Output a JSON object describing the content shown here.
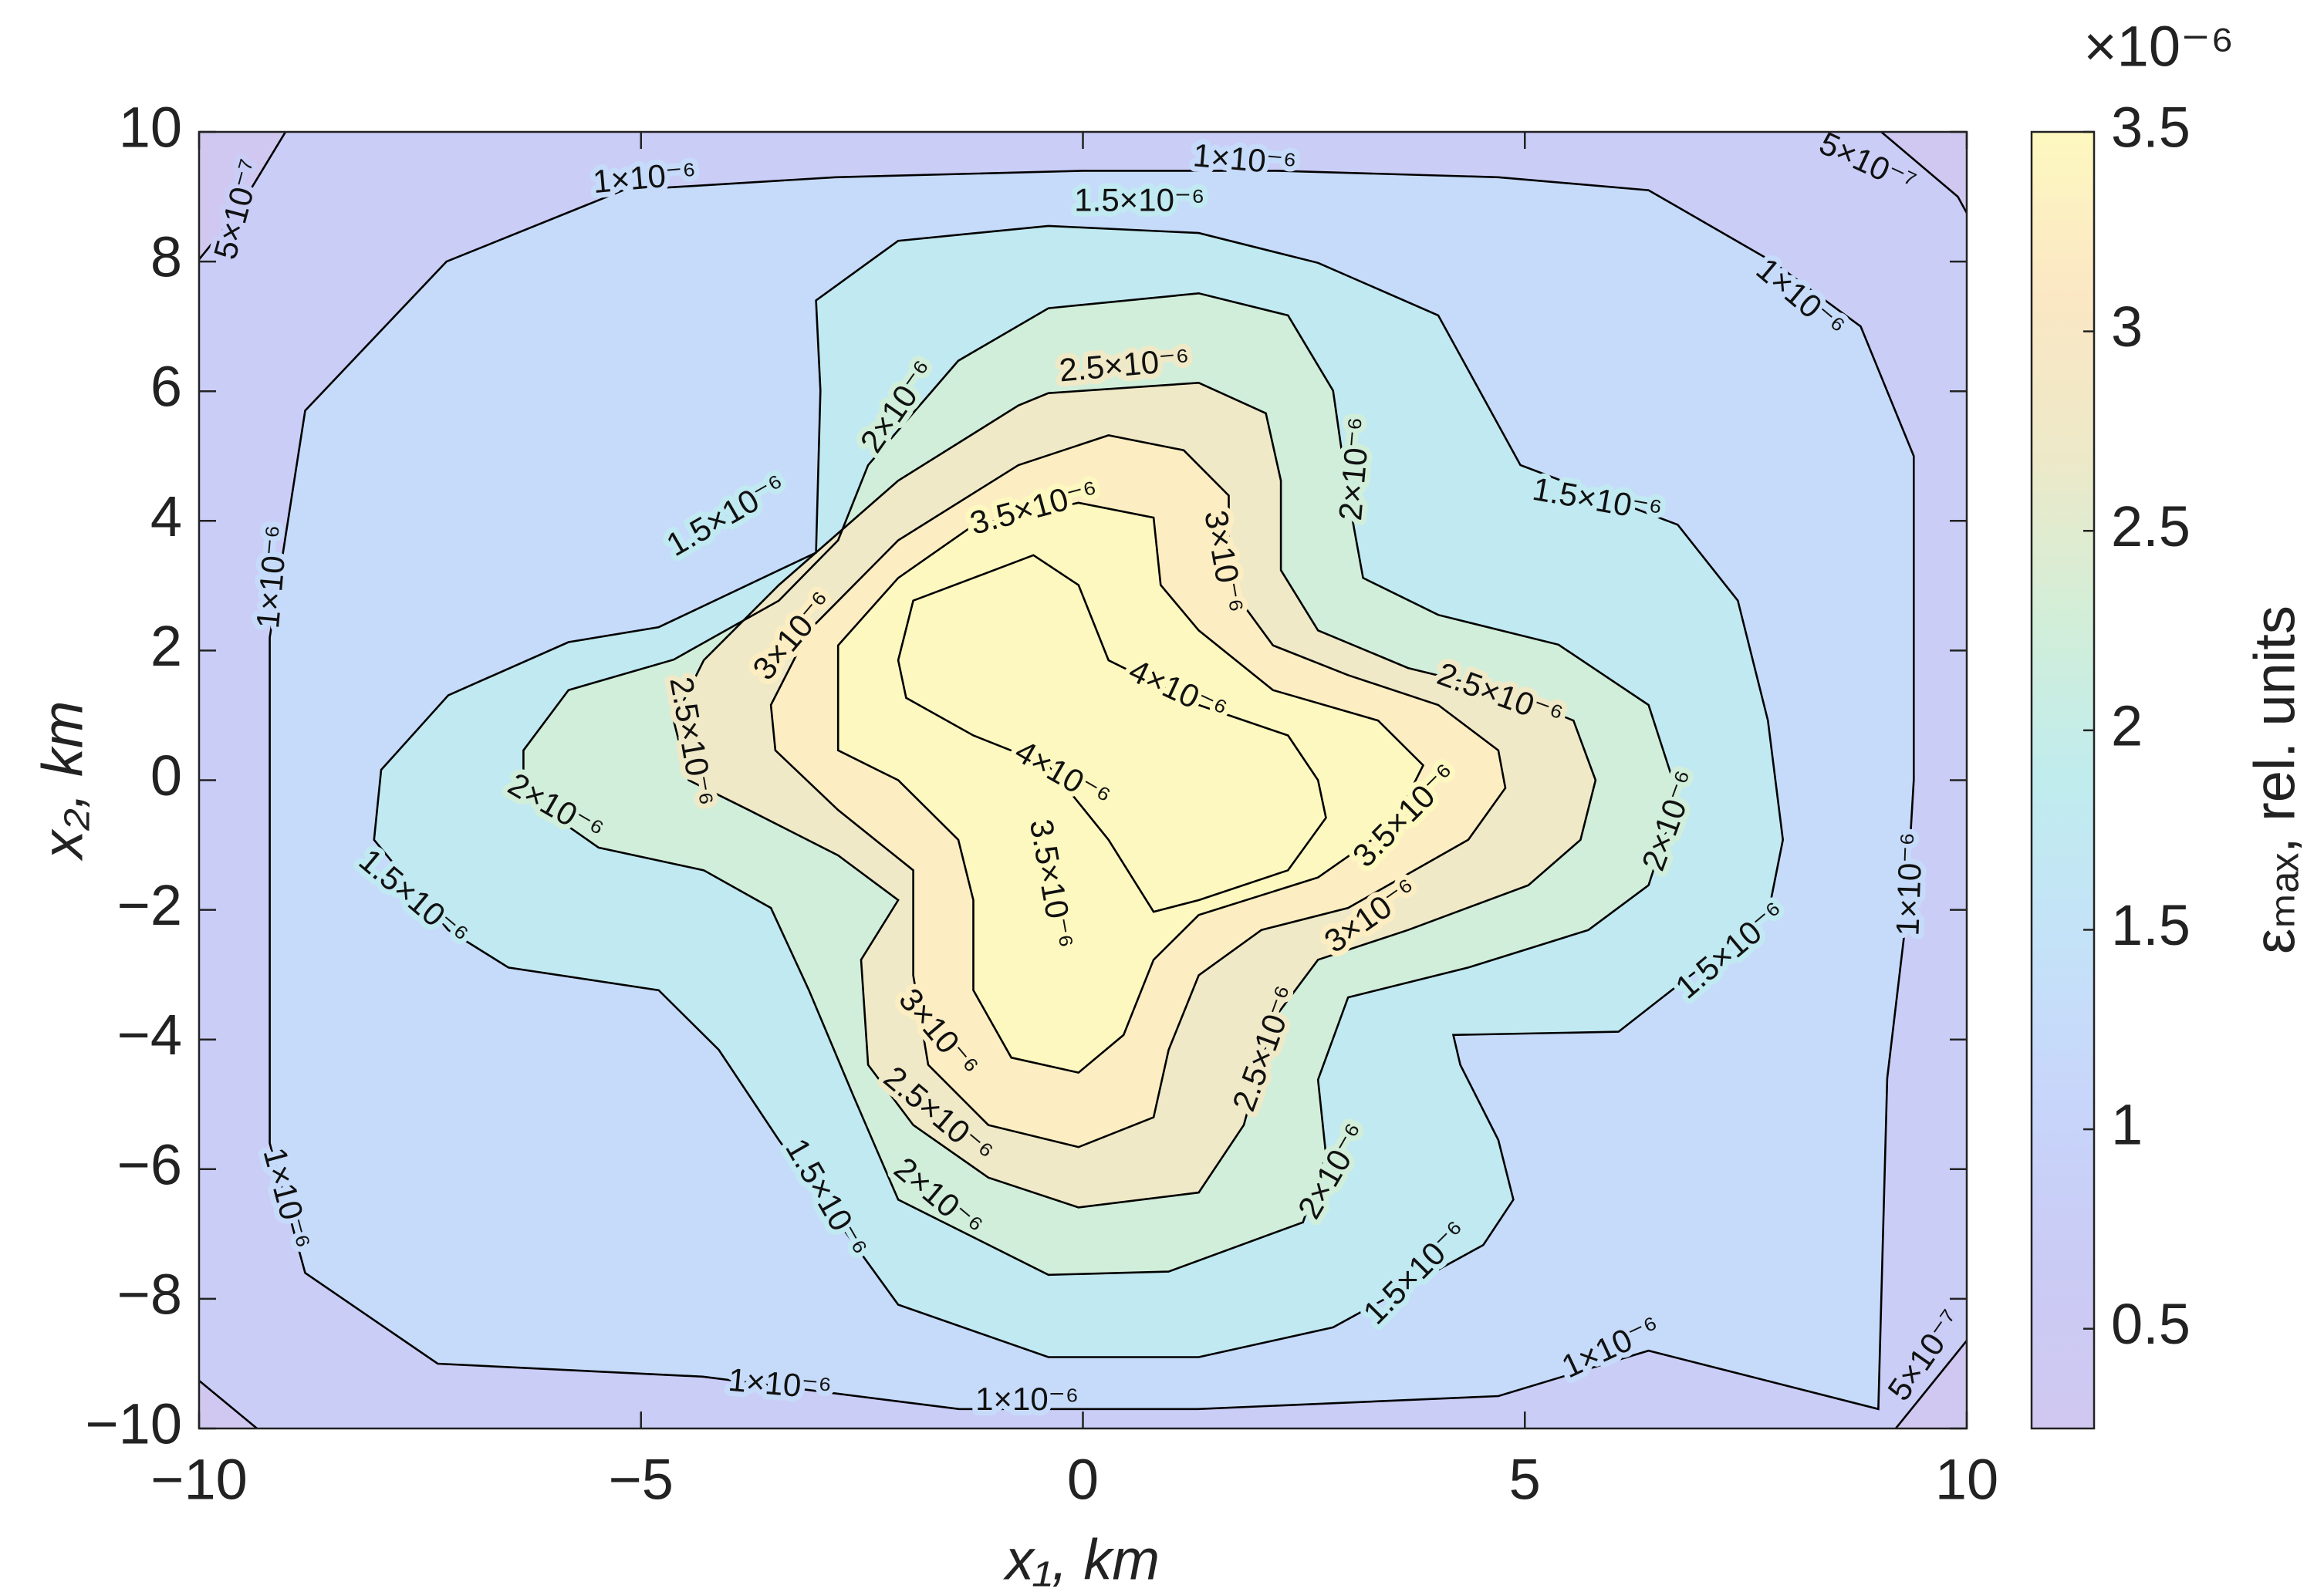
{
  "chart_data": {
    "type": "contour",
    "xlabel": "x₁, km",
    "ylabel": "x₂, km",
    "xlim": [
      -10,
      10
    ],
    "ylim": [
      -10,
      10
    ],
    "xticks": [
      {
        "value": -10,
        "label": "−10"
      },
      {
        "value": -5,
        "label": "−5"
      },
      0,
      5,
      10
    ],
    "yticks": [
      {
        "value": -10,
        "label": "−10"
      },
      {
        "value": -8,
        "label": "−8"
      },
      {
        "value": -6,
        "label": "−6"
      },
      {
        "value": -4,
        "label": "−4"
      },
      {
        "value": -2,
        "label": "−2"
      },
      0,
      2,
      4,
      6,
      8,
      10
    ],
    "colorbar": {
      "label": "εₘₐₓ, rel. units",
      "multiplier": "×10⁻⁶",
      "clim": [
        0.25,
        3.5
      ],
      "ticks": [
        0.5,
        1,
        1.5,
        2,
        2.5,
        3,
        3.5
      ],
      "colors": [
        "#d0c8f0",
        "#cacbf5",
        "#c8d5fb",
        "#c4e2f8",
        "#c0ecee",
        "#d2eed8",
        "#ede9c8",
        "#fbe7c4",
        "#fdf8c0"
      ]
    },
    "line_color": "#000000",
    "contours": [
      {
        "value": 0.5,
        "label": "5×10⁻⁷",
        "x": [
          -8.8,
          8.6,
          9.9,
          10.5,
          10.5,
          8.9,
          -8.9,
          -10.5,
          -10.5,
          -9.6
        ],
        "y": [
          10.5,
          10.5,
          9.0,
          7.5,
          -7.8,
          -10.5,
          -10.5,
          -8.7,
          7.2,
          8.7
        ]
      },
      {
        "value": 1,
        "label": "1×10⁻⁶",
        "x": [
          -9.2,
          -8.8,
          -7.2,
          -5.2,
          -2.8,
          0,
          2.2,
          4.7,
          6.4,
          7.8,
          8.8,
          9.4,
          9.4,
          9.3,
          9.1,
          9.0,
          6.4,
          4.7,
          1.3,
          -1.4,
          -4.3,
          -7.3,
          -8.8,
          -9.2,
          -9.2
        ],
        "y": [
          2.2,
          5.7,
          8.0,
          9.1,
          9.3,
          9.4,
          9.4,
          9.3,
          9.1,
          8.0,
          7.0,
          5.0,
          0,
          -2.3,
          -4.6,
          -9.7,
          -8.8,
          -9.5,
          -9.7,
          -9.7,
          -9.2,
          -9.0,
          -7.6,
          -5.6,
          -1.9
        ]
      },
      {
        "value": 1.5,
        "label": "1.5×10⁻⁶",
        "x": [
          -8.02,
          -7.94,
          -7.18,
          -5.82,
          -4.8,
          -3.02,
          -2.97,
          -3.02,
          -2.09,
          -0.39,
          1.31,
          2.66,
          4.02,
          4.95,
          6.73,
          7.41,
          7.75,
          7.92,
          7.75,
          6.06,
          4.19,
          4.27,
          4.7,
          4.87,
          4.53,
          2.83,
          1.31,
          -0.39,
          -2.09,
          -3.44,
          -4.12,
          -4.8,
          -6.5,
          -7.18
        ],
        "y": [
          -0.92,
          0.16,
          1.31,
          2.13,
          2.36,
          3.51,
          6.01,
          7.4,
          8.32,
          8.55,
          8.44,
          7.98,
          7.17,
          4.86,
          3.94,
          2.77,
          0.92,
          -0.92,
          -2.08,
          -3.88,
          -3.93,
          -4.39,
          -5.55,
          -6.47,
          -7.17,
          -8.44,
          -8.9,
          -8.9,
          -8.09,
          -5.55,
          -4.16,
          -3.24,
          -2.89,
          -2.31
        ]
      },
      {
        "value": 2,
        "label": "2×10⁻⁶",
        "x": [
          -6.33,
          -5.82,
          -4.63,
          -3.44,
          -2.77,
          -2.43,
          -1.41,
          -0.39,
          1.31,
          2.32,
          2.83,
          3.0,
          3.17,
          4.02,
          5.38,
          6.4,
          6.73,
          6.4,
          5.72,
          4.36,
          3.0,
          2.66,
          2.75,
          2.49,
          0.97,
          -0.39,
          -2.09,
          -2.6,
          -3.1,
          -3.53,
          -4.29,
          -5.48,
          -6.33
        ],
        "y": [
          0.46,
          1.39,
          1.86,
          2.77,
          3.7,
          4.86,
          6.47,
          7.28,
          7.51,
          7.17,
          6.01,
          4.39,
          3.12,
          2.55,
          2.09,
          1.16,
          -0.23,
          -1.62,
          -2.31,
          -2.89,
          -3.35,
          -4.62,
          -5.78,
          -6.82,
          -7.58,
          -7.63,
          -6.47,
          -4.86,
          -3.24,
          -1.97,
          -1.39,
          -1.04,
          -0.23
        ]
      },
      {
        "value": 2.5,
        "label": "2.5×10⁻⁶",
        "x": [
          -4.63,
          -4.29,
          -3.44,
          -2.09,
          -0.73,
          -0.39,
          1.31,
          2.07,
          2.24,
          2.24,
          2.66,
          3.68,
          4.7,
          5.55,
          5.8,
          5.63,
          5.04,
          3.68,
          2.66,
          2.15,
          1.82,
          1.31,
          -0.05,
          -1.07,
          -1.92,
          -2.43,
          -2.51,
          -2.09,
          -2.77,
          -3.78,
          -4.46
        ],
        "y": [
          0.92,
          1.85,
          3.01,
          4.62,
          5.78,
          5.97,
          6.13,
          5.66,
          4.62,
          3.24,
          2.31,
          1.73,
          1.39,
          0.92,
          0,
          -0.92,
          -1.62,
          -2.31,
          -2.77,
          -3.7,
          -5.32,
          -6.36,
          -6.59,
          -6.13,
          -5.32,
          -4.39,
          -2.77,
          -1.85,
          -1.16,
          -0.46,
          0
        ]
      },
      {
        "value": 3,
        "label": "3×10⁻⁶",
        "x": [
          -3.53,
          -3.1,
          -2.09,
          -0.73,
          0.29,
          1.14,
          1.65,
          1.65,
          2.15,
          3.0,
          4.02,
          4.7,
          4.78,
          4.36,
          3.0,
          2.02,
          1.31,
          0.97,
          0.8,
          -0.05,
          -1.07,
          -1.75,
          -1.92,
          -1.92,
          -2.77,
          -3.48
        ],
        "y": [
          1.16,
          2.31,
          3.7,
          4.86,
          5.32,
          5.09,
          4.39,
          3.01,
          2.08,
          1.62,
          1.16,
          0.46,
          -0.12,
          -0.92,
          -1.97,
          -2.31,
          -3.01,
          -4.16,
          -5.2,
          -5.66,
          -5.32,
          -4.39,
          -3.01,
          -1.39,
          -0.46,
          0.46
        ]
      },
      {
        "value": 3.5,
        "label": "3.5×10⁻⁶",
        "x": [
          -2.77,
          -2.77,
          -2.09,
          -1.24,
          -0.05,
          0.8,
          0.88,
          1.31,
          2.15,
          3.34,
          3.85,
          3.51,
          2.66,
          1.31,
          0.8,
          0.46,
          -0.05,
          -0.81,
          -1.24,
          -1.24,
          -1.41,
          -2.09,
          -2.77
        ],
        "y": [
          1.16,
          2.08,
          3.12,
          3.93,
          4.28,
          4.05,
          3.01,
          2.31,
          1.39,
          0.92,
          0.23,
          -0.69,
          -1.5,
          -2.08,
          -2.77,
          -3.93,
          -4.51,
          -4.28,
          -3.24,
          -1.85,
          -0.92,
          0,
          0.46
        ]
      },
      {
        "value": 4,
        "label": "4×10⁻⁶",
        "x": [
          -2.09,
          -1.92,
          -1.24,
          -0.56,
          -0.05,
          0.29,
          1.31,
          2.32,
          2.66,
          2.75,
          2.32,
          1.31,
          0.8,
          0.29,
          -0.39,
          -1.24,
          -2.0
        ],
        "y": [
          1.85,
          2.77,
          3.12,
          3.47,
          3.01,
          1.85,
          1.16,
          0.69,
          0,
          -0.58,
          -1.39,
          -1.85,
          -2.03,
          -0.92,
          0.23,
          0.69,
          1.27
        ]
      }
    ]
  }
}
